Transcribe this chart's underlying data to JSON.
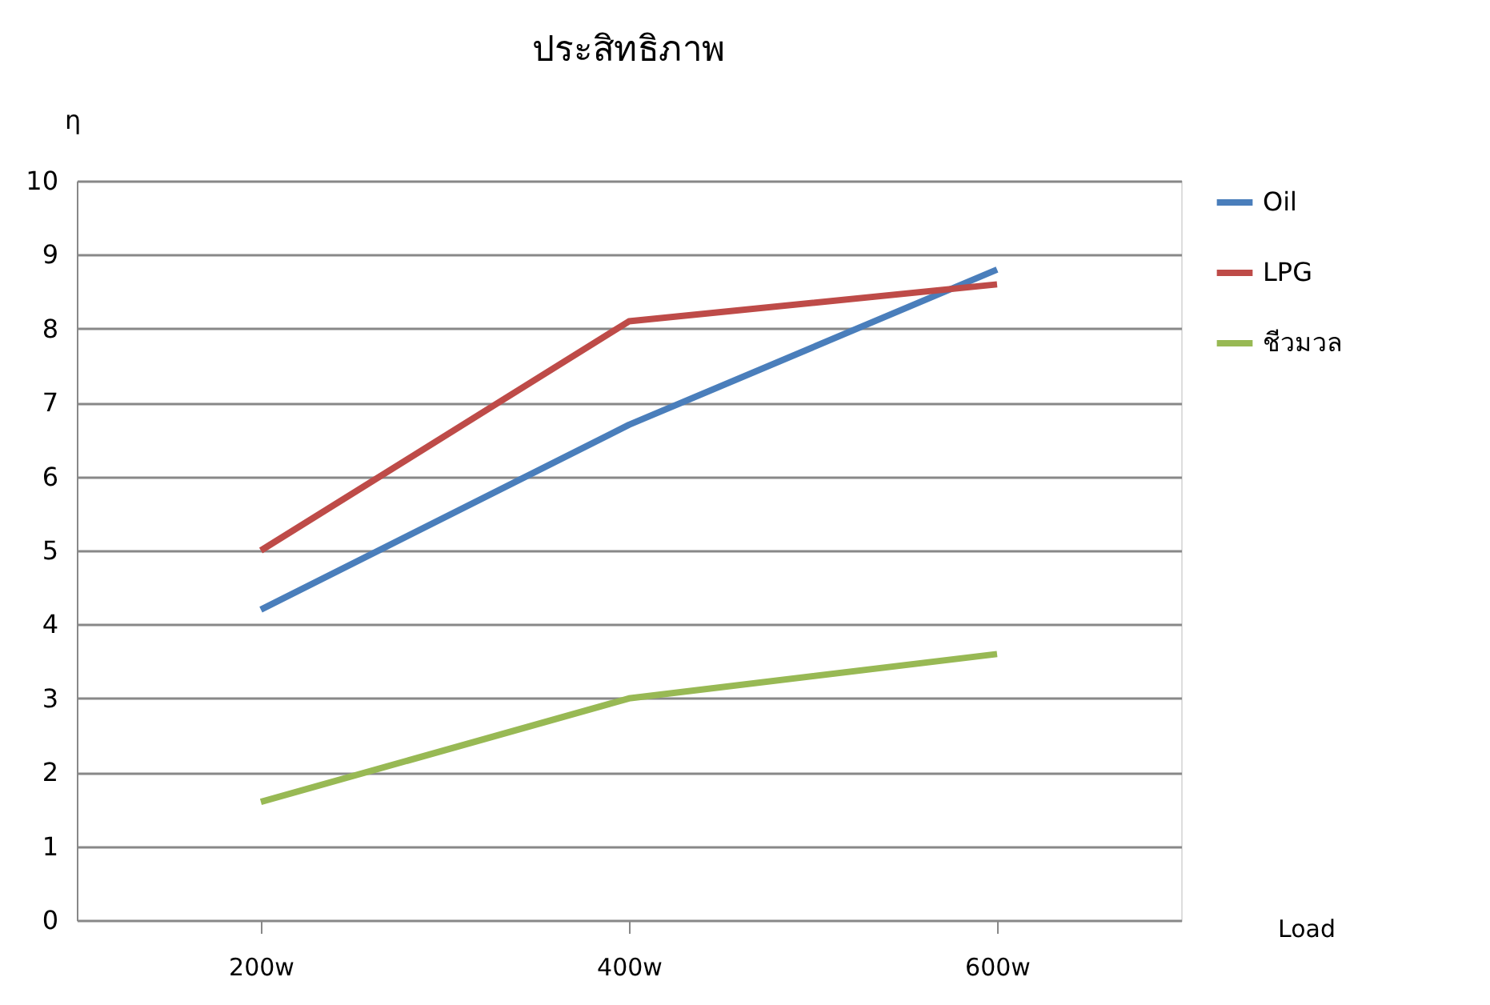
{
  "chart_data": {
    "type": "line",
    "title": "ประสิทธิภาพ",
    "xlabel": "Load",
    "ylabel": "η",
    "categories": [
      "200w",
      "400w",
      "600w"
    ],
    "series": [
      {
        "name": "Oil",
        "color": "#4a7ebb",
        "values": [
          4.2,
          6.7,
          8.8
        ]
      },
      {
        "name": "LPG",
        "color": "#be4b48",
        "values": [
          5.0,
          8.1,
          8.6
        ]
      },
      {
        "name": "ชีวมวล",
        "color": "#98b954",
        "values": [
          1.6,
          3.0,
          3.6
        ]
      }
    ],
    "ylim": [
      0,
      10
    ],
    "yticks": [
      0,
      1,
      2,
      3,
      4,
      5,
      6,
      7,
      8,
      9,
      10
    ],
    "grid": "y",
    "legend": "right",
    "marker": "none",
    "line_style": "solid"
  }
}
